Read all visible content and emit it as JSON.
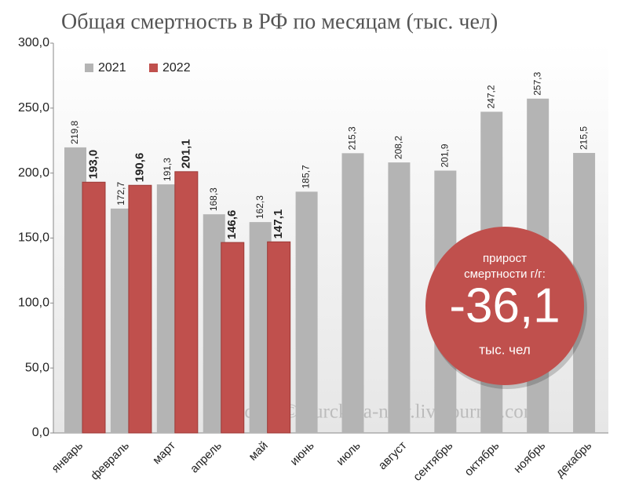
{
  "chart_data": {
    "type": "bar",
    "title": "Общая смертность в РФ по месяцам (тыс. чел)",
    "categories": [
      "январь",
      "февраль",
      "март",
      "апрель",
      "май",
      "июнь",
      "июль",
      "август",
      "сентябрь",
      "октябрь",
      "ноябрь",
      "декабрь"
    ],
    "series": [
      {
        "name": "2021",
        "color": "#b4b4b4",
        "values": [
          219.8,
          172.7,
          191.3,
          168.3,
          162.3,
          185.7,
          215.3,
          208.2,
          201.9,
          247.2,
          257.3,
          215.5
        ],
        "value_labels": [
          "219,8",
          "172,7",
          "191,3",
          "168,3",
          "162,3",
          "185,7",
          "215,3",
          "208,2",
          "201,9",
          "247,2",
          "257,3",
          "215,5"
        ]
      },
      {
        "name": "2022",
        "color": "#c0504d",
        "values": [
          193.0,
          190.6,
          201.1,
          146.6,
          147.1,
          null,
          null,
          null,
          null,
          null,
          null,
          null
        ],
        "value_labels": [
          "193,0",
          "190,6",
          "201,1",
          "146,6",
          "147,1",
          null,
          null,
          null,
          null,
          null,
          null,
          null
        ]
      }
    ],
    "ylim": [
      0,
      300
    ],
    "yticks": [
      {
        "value": 0,
        "label": "0,0"
      },
      {
        "value": 50,
        "label": "50,0"
      },
      {
        "value": 100,
        "label": "100,0"
      },
      {
        "value": 150,
        "label": "150,0"
      },
      {
        "value": 200,
        "label": "200,0"
      },
      {
        "value": 250,
        "label": "250,0"
      },
      {
        "value": 300,
        "label": "300,0"
      }
    ],
    "grid": false,
    "legend": "top-left",
    "annotation": {
      "lines": [
        "прирост",
        "смертности г/г:"
      ],
      "big": "-36,1",
      "unit": "тыс. чел"
    },
    "watermark": "Росстат © burckina-new.livejournal.com"
  }
}
